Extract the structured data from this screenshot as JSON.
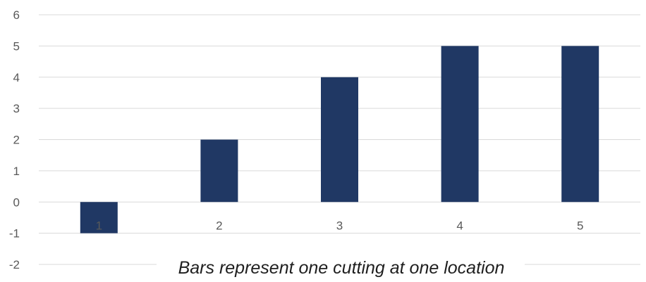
{
  "chart_data": {
    "type": "bar",
    "categories": [
      "1",
      "2",
      "3",
      "4",
      "5"
    ],
    "values": [
      -1,
      2,
      4,
      5,
      5
    ],
    "ylim": [
      -2,
      6
    ],
    "yticks": [
      "-2",
      "-1",
      "0",
      "1",
      "2",
      "3",
      "4",
      "5",
      "6"
    ],
    "grid": true,
    "legend": "none",
    "caption": "Bars represent one cutting at one location",
    "colors": {
      "bar": "#203864",
      "gridline": "#d9d9d9",
      "tick_text": "#595959",
      "caption_text": "#1f1f1f"
    }
  }
}
